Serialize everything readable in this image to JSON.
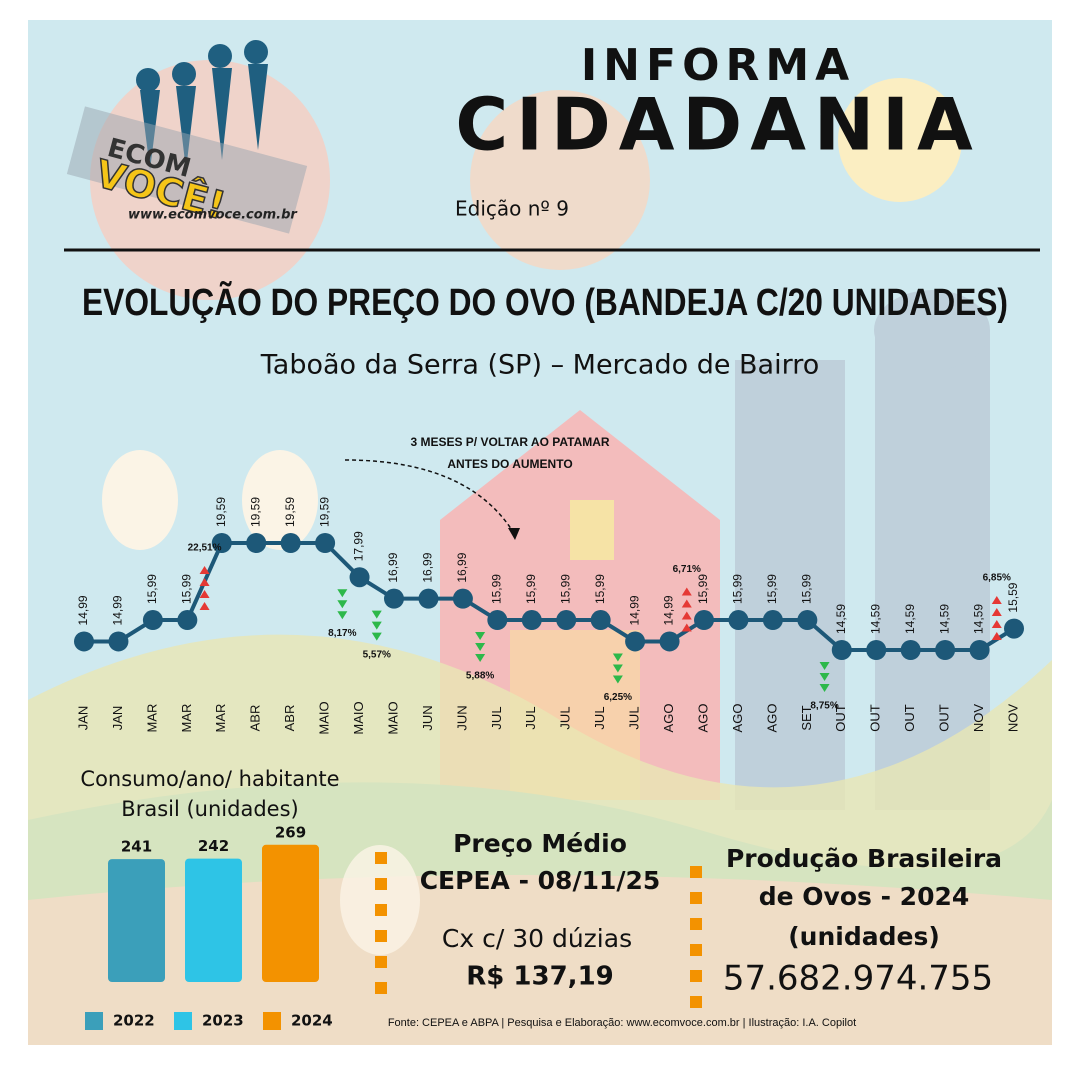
{
  "logo": {
    "line1": "ECOM",
    "line2": "VOCÊ!",
    "url": "www.ecomvoce.com.br"
  },
  "header": {
    "kicker": "INFORMA",
    "title": "CIDADANIA",
    "edition": "Edição  nº 9"
  },
  "chart_data": [
    {
      "type": "line",
      "title": "EVOLUÇÃO DO PREÇO DO OVO (BANDEJA C/20 UNIDADES)",
      "subtitle": "Taboão da Serra (SP) – Mercado de Bairro",
      "annotation": [
        "3 MESES P/ VOLTAR AO PATAMAR",
        "ANTES DO AUMENTO"
      ],
      "color": "#1d5878",
      "categories": [
        "JAN",
        "JAN",
        "MAR",
        "MAR",
        "MAR",
        "ABR",
        "ABR",
        "MAIO",
        "MAIO",
        "MAIO",
        "JUN",
        "JUN",
        "JUL",
        "JUL",
        "JUL",
        "JUL",
        "JUL",
        "AGO",
        "AGO",
        "AGO",
        "AGO",
        "SET",
        "OUT",
        "OUT",
        "OUT",
        "OUT",
        "NOV",
        "NOV"
      ],
      "values": [
        14.99,
        14.99,
        15.99,
        15.99,
        19.59,
        19.59,
        19.59,
        19.59,
        17.99,
        16.99,
        16.99,
        16.99,
        15.99,
        15.99,
        15.99,
        15.99,
        14.99,
        14.99,
        15.99,
        15.99,
        15.99,
        15.99,
        14.59,
        14.59,
        14.59,
        14.59,
        14.59,
        15.59
      ],
      "value_labels": [
        "14,99",
        "14,99",
        "15,99",
        "15,99",
        "19,59",
        "19,59",
        "19,59",
        "19,59",
        "17,99",
        "16,99",
        "16,99",
        "16,99",
        "15,99",
        "15,99",
        "15,99",
        "15,99",
        "14,99",
        "14,99",
        "15,99",
        "15,99",
        "15,99",
        "15,99",
        "14,59",
        "14,59",
        "14,59",
        "14,59",
        "14,59",
        "15,59"
      ],
      "changes": [
        null,
        null,
        null,
        null,
        22.51,
        null,
        null,
        null,
        8.17,
        5.57,
        null,
        null,
        5.88,
        null,
        null,
        null,
        6.25,
        null,
        6.71,
        null,
        null,
        null,
        8.75,
        null,
        null,
        null,
        null,
        6.85
      ],
      "change_labels": [
        null,
        null,
        null,
        null,
        "22,51%",
        null,
        null,
        null,
        "8,17%",
        "5,57%",
        null,
        null,
        "5,88%",
        null,
        null,
        null,
        "6,25%",
        null,
        "6,71%",
        null,
        null,
        null,
        "8,75%",
        null,
        null,
        null,
        null,
        "6,85%"
      ]
    },
    {
      "type": "bar",
      "title": [
        "Consumo/ano/ habitante",
        "Brasil (unidades)"
      ],
      "categories": [
        "2022",
        "2023",
        "2024"
      ],
      "values": [
        241,
        242,
        269
      ],
      "colors": [
        "#3b9fba",
        "#2ec4e6",
        "#f39200"
      ]
    }
  ],
  "price": {
    "title": [
      "Preço Médio",
      "CEPEA - 08/11/25"
    ],
    "unit": "Cx c/ 30 dúzias",
    "value": "R$ 137,19"
  },
  "production": {
    "title": [
      "Produção Brasileira",
      "de Ovos - 2024",
      "(unidades)"
    ],
    "value": "57.682.974.755"
  },
  "source": "Fonte: CEPEA e ABPA | Pesquisa e Elaboração: www.ecomvoce.com.br | Ilustração: I.A. Copilot"
}
